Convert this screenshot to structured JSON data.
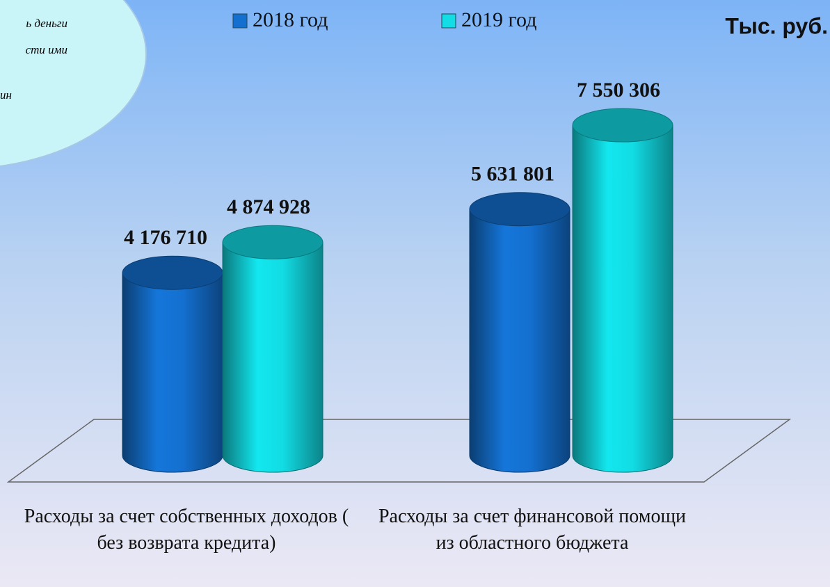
{
  "chart_data": {
    "type": "bar3d",
    "unit_label": "Тыс. руб.",
    "annotations": [
      "ь деньги",
      "сти ими",
      "ин"
    ],
    "categories": [
      "Расходы за счет собственных доходов ( без возврата кредита)",
      "Расходы за счет финансовой помощи из областного бюджета"
    ],
    "series": [
      {
        "name": "2018 год",
        "color": "#1470d0",
        "values": [
          4176710,
          5631801
        ],
        "value_labels": [
          "4 176 710",
          "5 631 801"
        ]
      },
      {
        "name": "2019 год",
        "color": "#12dce4",
        "values": [
          4874928,
          7550306
        ],
        "value_labels": [
          "4 874 928",
          "7 550 306"
        ]
      }
    ]
  }
}
